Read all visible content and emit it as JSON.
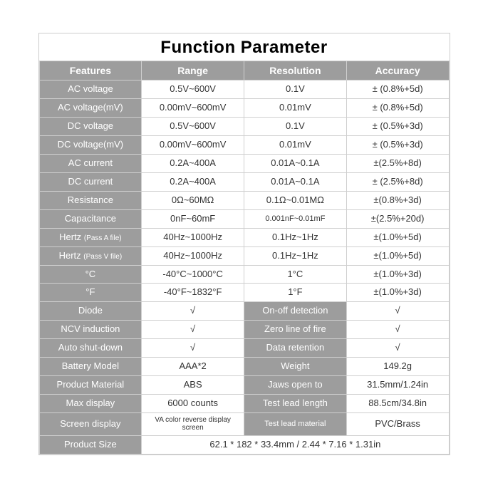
{
  "title": "Function Parameter",
  "colors": {
    "label_bg": "#9d9d9d",
    "label_fg": "#ffffff",
    "border": "#cfcfcf",
    "text": "#333333",
    "background": "#ffffff"
  },
  "columns": [
    "Features",
    "Range",
    "Resolution",
    "Accuracy"
  ],
  "spec_rows": [
    {
      "feature": "AC voltage",
      "range": "0.5V~600V",
      "resolution": "0.1V",
      "accuracy": "± (0.8%+5d)"
    },
    {
      "feature": "AC voltage(mV)",
      "range": "0.00mV~600mV",
      "resolution": "0.01mV",
      "accuracy": "± (0.8%+5d)"
    },
    {
      "feature": "DC voltage",
      "range": "0.5V~600V",
      "resolution": "0.1V",
      "accuracy": "± (0.5%+3d)"
    },
    {
      "feature": "DC voltage(mV)",
      "range": "0.00mV~600mV",
      "resolution": "0.01mV",
      "accuracy": "± (0.5%+3d)"
    },
    {
      "feature": "AC current",
      "range": "0.2A~400A",
      "resolution": "0.01A~0.1A",
      "accuracy": "±(2.5%+8d)"
    },
    {
      "feature": "DC current",
      "range": "0.2A~400A",
      "resolution": "0.01A~0.1A",
      "accuracy": "± (2.5%+8d)"
    },
    {
      "feature": "Resistance",
      "range": "0Ω~60MΩ",
      "resolution": "0.1Ω~0.01MΩ",
      "accuracy": "±(0.8%+3d)"
    },
    {
      "feature": "Capacitance",
      "range": "0nF~60mF",
      "resolution": "0.001nF~0.01mF",
      "accuracy": "±(2.5%+20d)"
    },
    {
      "feature": "Hertz (Pass A file)",
      "range": "40Hz~1000Hz",
      "resolution": "0.1Hz~1Hz",
      "accuracy": "±(1.0%+5d)"
    },
    {
      "feature": "Hertz (Pass V file)",
      "range": "40Hz~1000Hz",
      "resolution": "0.1Hz~1Hz",
      "accuracy": "±(1.0%+5d)"
    },
    {
      "feature": "°C",
      "range": "-40°C~1000°C",
      "resolution": "1°C",
      "accuracy": "±(1.0%+3d)"
    },
    {
      "feature": "°F",
      "range": "-40°F~1832°F",
      "resolution": "1°F",
      "accuracy": "±(1.0%+3d)"
    }
  ],
  "pair_rows": [
    {
      "l1": "Diode",
      "v1": "√",
      "l2": "On-off detection",
      "v2": "√"
    },
    {
      "l1": "NCV induction",
      "v1": "√",
      "l2": "Zero line of fire",
      "v2": "√"
    },
    {
      "l1": "Auto shut-down",
      "v1": "√",
      "l2": "Data retention",
      "v2": "√"
    },
    {
      "l1": "Battery Model",
      "v1": "AAA*2",
      "l2": "Weight",
      "v2": "149.2g"
    },
    {
      "l1": "Product Material",
      "v1": "ABS",
      "l2": "Jaws open to",
      "v2": "31.5mm/1.24in"
    },
    {
      "l1": "Max display",
      "v1": "6000 counts",
      "l2": "Test lead length",
      "v2": "88.5cm/34.8in"
    },
    {
      "l1": "Screen display",
      "v1": "VA color reverse display screen",
      "l2": "Test lead material",
      "v2": "PVC/Brass"
    }
  ],
  "size_row": {
    "label": "Product Size",
    "value": "62.1 * 182 * 33.4mm  / 2.44 * 7.16 * 1.31in"
  },
  "hertz_main": "Hertz",
  "hertz_sub_a": "(Pass A file)",
  "hertz_sub_b": "(Pass V file)"
}
